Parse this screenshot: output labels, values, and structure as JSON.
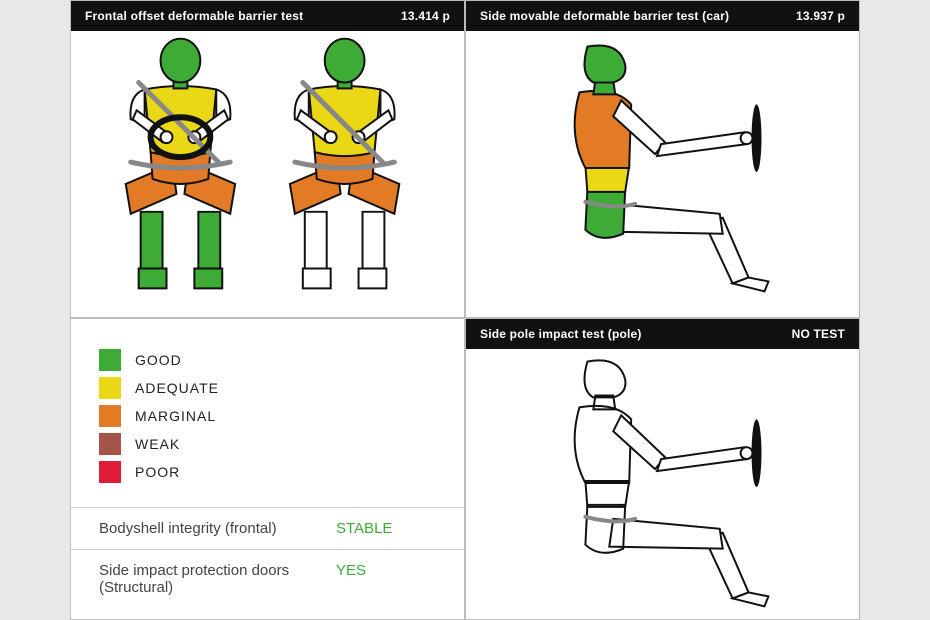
{
  "colors": {
    "good": "#3eab37",
    "adequate": "#ead816",
    "marginal": "#e27a26",
    "weak": "#a6544a",
    "poor": "#e01b3a",
    "outline": "#111111",
    "belt": "#888888",
    "header_bg": "#111111",
    "header_fg": "#ffffff",
    "panel_bg": "#ffffff",
    "page_bg": "#e8e8e8",
    "value_green": "#3eab37"
  },
  "panels": {
    "frontal": {
      "title": "Frontal offset deformable barrier test",
      "score": "13.414 p",
      "driver": {
        "head": "good",
        "chest": "adequate",
        "upper_arm": "none",
        "pelvis": "marginal",
        "upper_leg": "marginal",
        "lower_leg": "good",
        "foot": "good"
      },
      "passenger": {
        "head": "good",
        "chest": "adequate",
        "upper_arm": "none",
        "pelvis": "marginal",
        "upper_leg": "marginal",
        "lower_leg": "none",
        "foot": "none"
      }
    },
    "side_car": {
      "title": "Side movable deformable barrier test (car)",
      "score": "13.937 p",
      "regions": {
        "head": "good",
        "chest": "marginal",
        "abdomen": "adequate",
        "pelvis": "good"
      }
    },
    "side_pole": {
      "title": "Side pole impact test (pole)",
      "score": "NO TEST",
      "regions": {
        "head": "none",
        "chest": "none",
        "abdomen": "none",
        "pelvis": "none"
      }
    }
  },
  "legend": [
    {
      "key": "good",
      "label": "GOOD"
    },
    {
      "key": "adequate",
      "label": "ADEQUATE"
    },
    {
      "key": "marginal",
      "label": "MARGINAL"
    },
    {
      "key": "weak",
      "label": "WEAK"
    },
    {
      "key": "poor",
      "label": "POOR"
    }
  ],
  "info_rows": [
    {
      "label": "Bodyshell integrity (frontal)",
      "value": "STABLE",
      "value_color": "value_green"
    },
    {
      "label": "Side impact protection doors (Structural)",
      "value": "YES",
      "value_color": "value_green"
    }
  ],
  "typography": {
    "header_fontsize": 12,
    "legend_fontsize": 14,
    "info_fontsize": 15
  }
}
